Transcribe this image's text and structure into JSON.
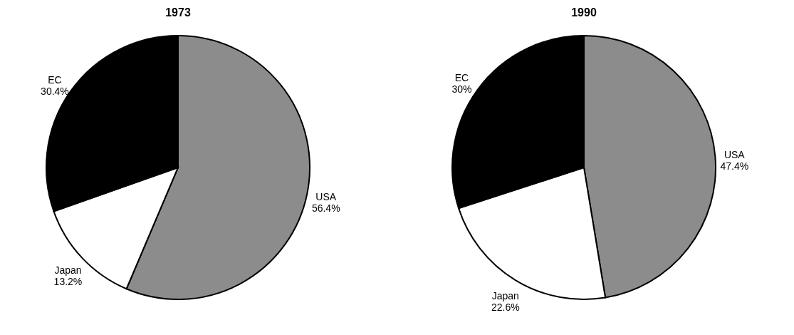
{
  "chart_data": [
    {
      "type": "pie",
      "title": "1973",
      "categories": [
        "USA",
        "Japan",
        "EC"
      ],
      "values": [
        56.4,
        13.2,
        30.4
      ],
      "colors": [
        "#8c8c8c",
        "#ffffff",
        "#000000"
      ],
      "value_labels": [
        "56.4%",
        "13.2%",
        "30.4%"
      ],
      "legend": false
    },
    {
      "type": "pie",
      "title": "1990",
      "categories": [
        "USA",
        "Japan",
        "EC"
      ],
      "values": [
        47.4,
        22.6,
        30
      ],
      "colors": [
        "#8c8c8c",
        "#ffffff",
        "#000000"
      ],
      "value_labels": [
        "47.4%",
        "22.6%",
        "30%"
      ],
      "legend": false
    }
  ]
}
